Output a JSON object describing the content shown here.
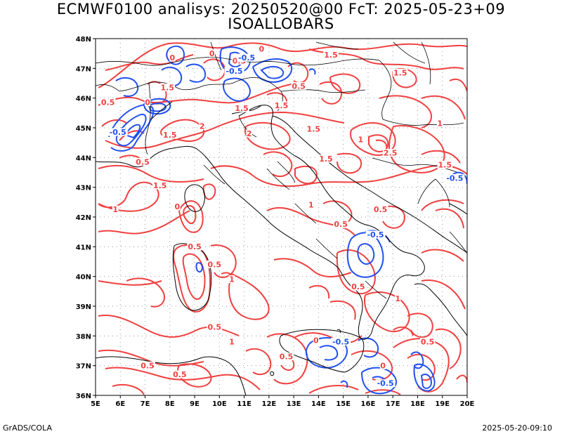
{
  "title": {
    "line1": "ECMWF0100 analisys: 20250520@00 FcT: 2025-05-23+09",
    "line2": "ISOALLOBARS"
  },
  "footer": {
    "left": "GrADS/COLA",
    "right": "2025-05-20-09:10"
  },
  "axes": {
    "lat_labels": [
      "48N",
      "47N",
      "46N",
      "45N",
      "44N",
      "43N",
      "42N",
      "41N",
      "40N",
      "39N",
      "38N",
      "37N",
      "36N"
    ],
    "lon_labels": [
      "5E",
      "6E",
      "7E",
      "8E",
      "9E",
      "10E",
      "11E",
      "12E",
      "13E",
      "14E",
      "15E",
      "16E",
      "17E",
      "18E",
      "19E",
      "20E"
    ],
    "lat_range": [
      36,
      48
    ],
    "lon_range": [
      5,
      20
    ],
    "grid": true
  },
  "colors": {
    "positive_contour": "#f04040",
    "negative_contour": "#2050ee",
    "coast": "#000000",
    "border": "#000000",
    "grid": "#999999"
  },
  "contour_labels": [
    {
      "text": "0",
      "sign": "pos",
      "lon": 8.1,
      "lat": 47.3
    },
    {
      "text": "0",
      "sign": "pos",
      "lon": 9.7,
      "lat": 47.45
    },
    {
      "text": "0.5",
      "sign": "pos",
      "lon": 10.8,
      "lat": 47.2
    },
    {
      "text": "-0.5",
      "sign": "neg",
      "lon": 11.1,
      "lat": 47.3
    },
    {
      "text": "-0.5",
      "sign": "neg",
      "lon": 10.6,
      "lat": 46.85
    },
    {
      "text": "0",
      "sign": "pos",
      "lon": 11.7,
      "lat": 47.6
    },
    {
      "text": "1.5",
      "sign": "pos",
      "lon": 14.5,
      "lat": 47.4
    },
    {
      "text": "1.5",
      "sign": "pos",
      "lon": 17.3,
      "lat": 46.8
    },
    {
      "text": "1.5",
      "sign": "pos",
      "lon": 7.9,
      "lat": 46.3
    },
    {
      "text": "0.5",
      "sign": "pos",
      "lon": 5.5,
      "lat": 45.8
    },
    {
      "text": "0",
      "sign": "pos",
      "lon": 7.1,
      "lat": 45.8
    },
    {
      "text": "1.5",
      "sign": "pos",
      "lon": 10.9,
      "lat": 45.6
    },
    {
      "text": "0.5",
      "sign": "pos",
      "lon": 13.2,
      "lat": 46.35
    },
    {
      "text": "1.5",
      "sign": "pos",
      "lon": 12.5,
      "lat": 45.7
    },
    {
      "text": "1.5",
      "sign": "pos",
      "lon": 13.8,
      "lat": 44.9
    },
    {
      "text": "-0.5",
      "sign": "neg",
      "lon": 5.9,
      "lat": 44.8
    },
    {
      "text": "1.5",
      "sign": "pos",
      "lon": 8.0,
      "lat": 44.7
    },
    {
      "text": "0.5",
      "sign": "pos",
      "lon": 6.9,
      "lat": 43.8
    },
    {
      "text": "2",
      "sign": "pos",
      "lon": 11.2,
      "lat": 44.75
    },
    {
      "text": "2",
      "sign": "pos",
      "lon": 9.3,
      "lat": 45.0
    },
    {
      "text": "1.5",
      "sign": "pos",
      "lon": 14.3,
      "lat": 43.9
    },
    {
      "text": "2.5",
      "sign": "pos",
      "lon": 16.9,
      "lat": 44.1
    },
    {
      "text": "1",
      "sign": "pos",
      "lon": 15.7,
      "lat": 44.55
    },
    {
      "text": "1",
      "sign": "pos",
      "lon": 18.9,
      "lat": 45.1
    },
    {
      "text": "1.5",
      "sign": "pos",
      "lon": 19.1,
      "lat": 43.7
    },
    {
      "text": "-0.5",
      "sign": "neg",
      "lon": 19.5,
      "lat": 43.25
    },
    {
      "text": "1.5",
      "sign": "pos",
      "lon": 7.6,
      "lat": 43.0
    },
    {
      "text": "0",
      "sign": "pos",
      "lon": 8.3,
      "lat": 42.3
    },
    {
      "text": "1",
      "sign": "pos",
      "lon": 5.8,
      "lat": 42.2
    },
    {
      "text": "1",
      "sign": "pos",
      "lon": 13.7,
      "lat": 42.35
    },
    {
      "text": "0.5",
      "sign": "pos",
      "lon": 16.5,
      "lat": 42.2
    },
    {
      "text": "0.5",
      "sign": "pos",
      "lon": 14.9,
      "lat": 41.7
    },
    {
      "text": "-0.5",
      "sign": "neg",
      "lon": 16.3,
      "lat": 41.35
    },
    {
      "text": "0.5",
      "sign": "pos",
      "lon": 9.0,
      "lat": 40.95
    },
    {
      "text": "0.5",
      "sign": "pos",
      "lon": 9.8,
      "lat": 40.35
    },
    {
      "text": "1",
      "sign": "pos",
      "lon": 10.5,
      "lat": 39.85
    },
    {
      "text": "0.5",
      "sign": "pos",
      "lon": 15.6,
      "lat": 39.6
    },
    {
      "text": "1",
      "sign": "pos",
      "lon": 17.2,
      "lat": 39.2
    },
    {
      "text": "0.5",
      "sign": "pos",
      "lon": 9.8,
      "lat": 38.25
    },
    {
      "text": "1",
      "sign": "pos",
      "lon": 10.5,
      "lat": 37.75
    },
    {
      "text": "0.5",
      "sign": "pos",
      "lon": 7.1,
      "lat": 36.95
    },
    {
      "text": "0.5",
      "sign": "pos",
      "lon": 8.4,
      "lat": 36.65
    },
    {
      "text": "0.5",
      "sign": "pos",
      "lon": 12.7,
      "lat": 37.25
    },
    {
      "text": "-0.5",
      "sign": "neg",
      "lon": 14.9,
      "lat": 37.75
    },
    {
      "text": "0",
      "sign": "pos",
      "lon": 13.9,
      "lat": 37.8
    },
    {
      "text": "0.5",
      "sign": "pos",
      "lon": 18.4,
      "lat": 37.75
    },
    {
      "text": "-0.5",
      "sign": "neg",
      "lon": 16.7,
      "lat": 36.35
    },
    {
      "text": "0",
      "sign": "pos",
      "lon": 16.6,
      "lat": 36.95
    }
  ]
}
